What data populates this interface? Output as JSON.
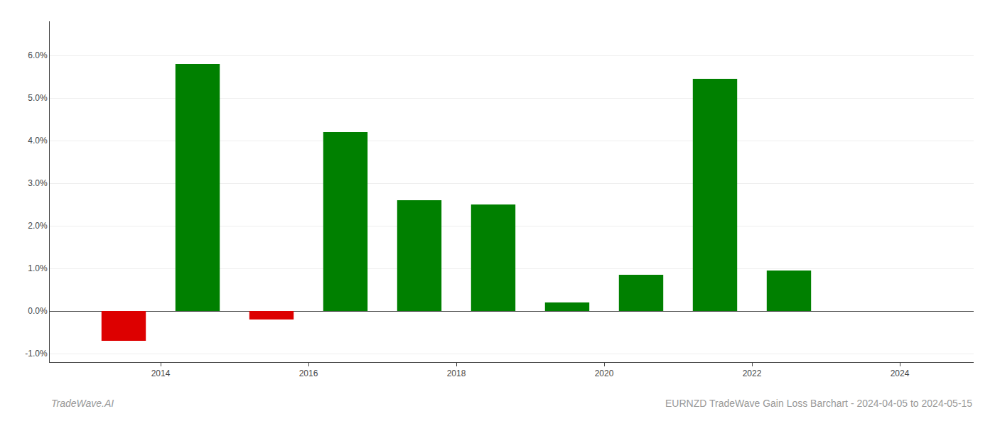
{
  "chart_data": {
    "type": "bar",
    "title": "EURNZD TradeWave Gain Loss Barchart - 2024-04-05 to 2024-05-15",
    "annotations": [
      "TradeWave.AI"
    ],
    "x": [
      2013.5,
      2014.5,
      2015.5,
      2016.5,
      2017.5,
      2018.5,
      2019.5,
      2020.5,
      2021.5,
      2022.5,
      2023.5
    ],
    "values": [
      -0.007,
      0.058,
      -0.002,
      0.042,
      0.026,
      0.025,
      0.002,
      0.0085,
      0.0545,
      0.0095,
      null
    ],
    "colors": [
      "#dd0000",
      "#008000",
      "#dd0000",
      "#008000",
      "#008000",
      "#008000",
      "#008000",
      "#008000",
      "#008000",
      "#008000",
      "#008000"
    ],
    "xlim": [
      2012.5,
      2025.0
    ],
    "xticks": [
      2014,
      2016,
      2018,
      2020,
      2022,
      2024
    ],
    "ylim": [
      -0.012,
      0.068
    ],
    "yticks": [
      {
        "value": -0.01,
        "label": "-1.0%"
      },
      {
        "value": 0.0,
        "label": "0.0%"
      },
      {
        "value": 0.01,
        "label": "1.0%"
      },
      {
        "value": 0.02,
        "label": "2.0%"
      },
      {
        "value": 0.03,
        "label": "3.0%"
      },
      {
        "value": 0.04,
        "label": "4.0%"
      },
      {
        "value": 0.05,
        "label": "5.0%"
      },
      {
        "value": 0.06,
        "label": "6.0%"
      }
    ],
    "grid": true
  }
}
